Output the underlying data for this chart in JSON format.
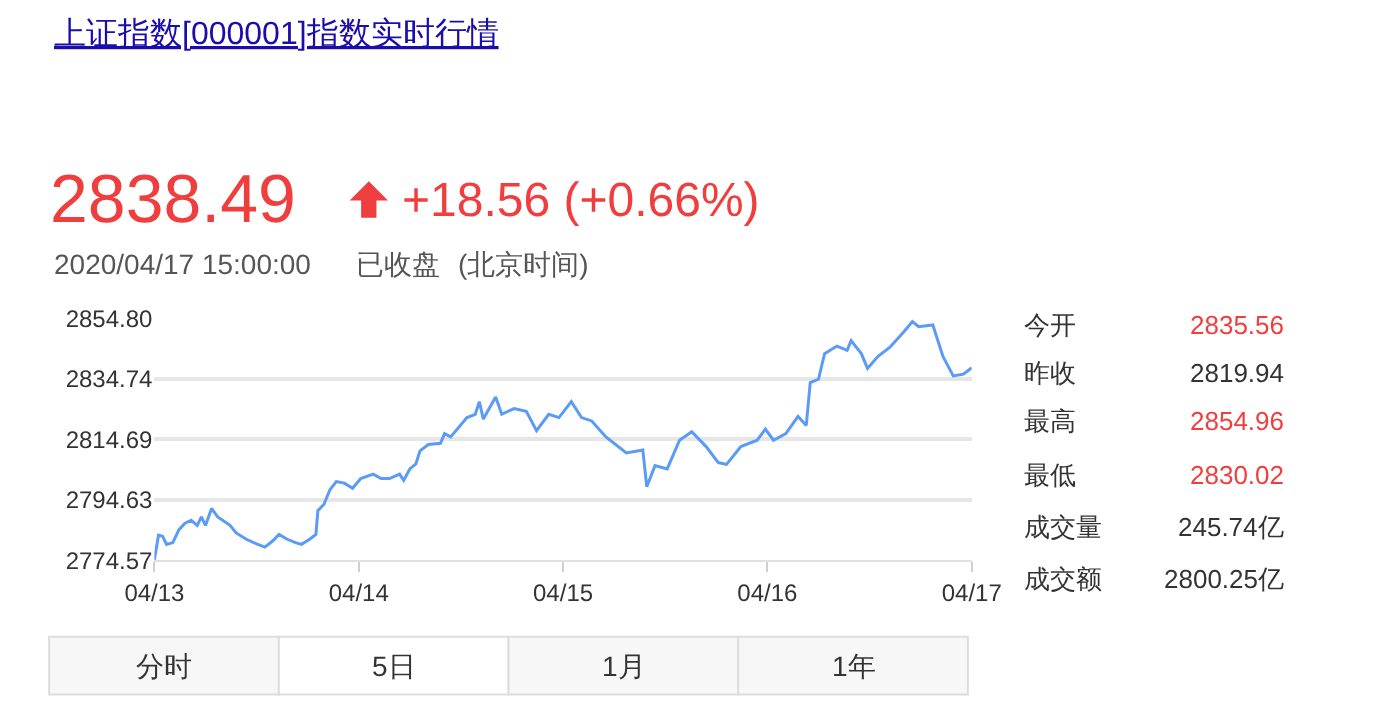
{
  "chart_data": {
    "type": "line",
    "title": "上证指数[000001]指数实时行情",
    "annotations": [
      "2838.49",
      "+18.56 (+0.66%)",
      "2020/04/17 15:00:00",
      "已收盘",
      "(北京时间)",
      "今开",
      "2835.56",
      "昨收",
      "2819.94",
      "最高",
      "2854.96",
      "最低",
      "2830.02",
      "成交量",
      "245.74亿",
      "成交额",
      "2800.25亿",
      "分时",
      "5日",
      "1月",
      "1年"
    ],
    "x": [
      "2020-04-13T00:00",
      "2020-04-13T00:29",
      "2020-04-13T00:58",
      "2020-04-13T01:26",
      "2020-04-13T02:10",
      "2020-04-13T02:53",
      "2020-04-13T03:36",
      "2020-04-13T04:19",
      "2020-04-13T05:02",
      "2020-04-13T05:31",
      "2020-04-13T06:00",
      "2020-04-13T06:43",
      "2020-04-13T07:26",
      "2020-04-13T08:53",
      "2020-04-13T09:36",
      "2020-04-13T10:48",
      "2020-04-13T12:00",
      "2020-04-13T12:58",
      "2020-04-13T13:55",
      "2020-04-13T14:38",
      "2020-04-13T15:36",
      "2020-04-13T16:34",
      "2020-04-13T17:17",
      "2020-04-13T18:14",
      "2020-04-13T18:58",
      "2020-04-13T19:12",
      "2020-04-13T19:55",
      "2020-04-13T20:38",
      "2020-04-13T21:22",
      "2020-04-13T22:19",
      "2020-04-13T23:17",
      "2020-04-14T00:14",
      "2020-04-14T01:41",
      "2020-04-14T02:38",
      "2020-04-14T03:36",
      "2020-04-14T04:48",
      "2020-04-14T05:17",
      "2020-04-14T06:00",
      "2020-04-14T06:43",
      "2020-04-14T07:12",
      "2020-04-14T08:10",
      "2020-04-14T09:36",
      "2020-04-14T10:05",
      "2020-04-14T10:48",
      "2020-04-14T12:43",
      "2020-04-14T13:41",
      "2020-04-14T14:10",
      "2020-04-14T14:38",
      "2020-04-14T16:05",
      "2020-04-14T16:48",
      "2020-04-14T18:14",
      "2020-04-14T19:41",
      "2020-04-14T20:53",
      "2020-04-14T22:19",
      "2020-04-14T23:31",
      "2020-04-15T00:58",
      "2020-04-15T02:10",
      "2020-04-15T03:22",
      "2020-04-15T05:02",
      "2020-04-15T07:26",
      "2020-04-15T09:22",
      "2020-04-15T09:50",
      "2020-04-15T10:48",
      "2020-04-15T12:14",
      "2020-04-15T13:41",
      "2020-04-15T15:07",
      "2020-04-15T16:48",
      "2020-04-15T18:14",
      "2020-04-15T19:12",
      "2020-04-15T20:53",
      "2020-04-15T22:48",
      "2020-04-15T23:46",
      "2020-04-16T00:43",
      "2020-04-16T02:10",
      "2020-04-16T03:36",
      "2020-04-16T04:34",
      "2020-04-16T05:02",
      "2020-04-16T06:00",
      "2020-04-16T06:43",
      "2020-04-16T08:10",
      "2020-04-16T09:22",
      "2020-04-16T09:50",
      "2020-04-16T11:02",
      "2020-04-16T11:46",
      "2020-04-16T12:58",
      "2020-04-16T14:24",
      "2020-04-16T16:05",
      "2020-04-16T17:02",
      "2020-04-16T17:46",
      "2020-04-16T19:26",
      "2020-04-16T20:38",
      "2020-04-16T21:50",
      "2020-04-16T23:02",
      "2020-04-17T00:00"
    ],
    "series": [
      {
        "color": "#5b9bf5",
        "values": [
          2774.8,
          2783.0,
          2782.6,
          2779.9,
          2780.5,
          2784.8,
          2786.9,
          2787.9,
          2786.2,
          2789.0,
          2786.2,
          2791.8,
          2789.0,
          2786.2,
          2783.7,
          2781.6,
          2780.1,
          2779.0,
          2781.1,
          2783.2,
          2781.6,
          2780.5,
          2779.9,
          2781.6,
          2783.2,
          2791.1,
          2793.2,
          2798.1,
          2800.7,
          2800.2,
          2798.5,
          2801.7,
          2803.2,
          2801.7,
          2801.7,
          2803.2,
          2801.1,
          2804.9,
          2806.6,
          2810.9,
          2813.0,
          2813.4,
          2816.6,
          2815.5,
          2821.9,
          2823.0,
          2827.2,
          2821.4,
          2828.7,
          2823.0,
          2824.9,
          2824.0,
          2817.6,
          2823.0,
          2821.9,
          2827.2,
          2821.9,
          2820.8,
          2815.5,
          2810.2,
          2811.2,
          2799.0,
          2806.0,
          2804.9,
          2814.4,
          2817.2,
          2812.3,
          2807.0,
          2806.4,
          2812.3,
          2814.4,
          2818.1,
          2814.4,
          2816.6,
          2822.3,
          2819.3,
          2833.5,
          2834.6,
          2843.1,
          2845.6,
          2844.2,
          2847.4,
          2843.1,
          2838.2,
          2842.1,
          2845.2,
          2850.5,
          2853.7,
          2852.0,
          2852.6,
          2842.1,
          2835.7,
          2836.3,
          2838.4
        ]
      }
    ],
    "xlim": [
      "2020-04-13",
      "2020-04-17"
    ],
    "xticks": [
      {
        "value": "2020-04-13",
        "label": "04/13"
      },
      {
        "value": "2020-04-14",
        "label": "04/14"
      },
      {
        "value": "2020-04-15",
        "label": "04/15"
      },
      {
        "value": "2020-04-16",
        "label": "04/16"
      },
      {
        "value": "2020-04-17",
        "label": "04/17"
      }
    ],
    "ylim": [
      2774.57,
      2854.8
    ],
    "yticks": [
      2774.57,
      2794.63,
      2814.69,
      2834.74,
      {
        "value": 2854.8,
        "label": "2854.80"
      }
    ],
    "grid": "y"
  }
}
